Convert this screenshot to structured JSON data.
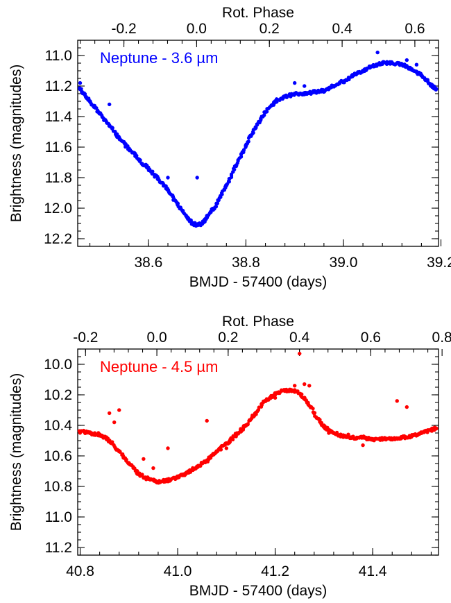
{
  "chart_data": [
    {
      "type": "scatter",
      "annotation": "Neptune - 3.6 µm",
      "color": "#0000ff",
      "xlabel": "BMJD - 57400 (days)",
      "ylabel": "Brightness (magnitudes)",
      "top_axis_label": "Rot. Phase",
      "xlim": [
        38.455,
        39.195
      ],
      "ylim": [
        12.25,
        10.9
      ],
      "y_inverted": true,
      "xticks": [
        38.6,
        38.8,
        39.0,
        39.2
      ],
      "xtick_labels": [
        "38.6",
        "38.8",
        "39.0",
        "39.2"
      ],
      "yticks": [
        11.0,
        11.2,
        11.4,
        11.6,
        11.8,
        12.0,
        12.2
      ],
      "ytick_labels": [
        "11.0",
        "11.2",
        "11.4",
        "11.6",
        "11.8",
        "12.0",
        "12.2"
      ],
      "phase_ticks": [
        -0.2,
        0.0,
        0.2,
        0.4,
        0.6
      ],
      "phase_tick_labels": [
        "-0.2",
        "0.0",
        "0.2",
        "0.4",
        "0.6"
      ],
      "phase_xlim": [
        -0.327,
        0.665
      ],
      "grid": false,
      "series": [
        {
          "x": [
            38.46,
            38.48,
            38.5,
            38.52,
            38.54,
            38.56,
            38.58,
            38.6,
            38.62,
            38.64,
            38.66,
            38.68,
            38.69,
            38.7,
            38.71,
            38.72,
            38.74,
            38.76,
            38.78,
            38.8,
            38.82,
            38.84,
            38.86,
            38.88,
            38.9,
            38.92,
            38.94,
            38.96,
            38.98,
            39.0,
            39.02,
            39.04,
            39.06,
            39.08,
            39.1,
            39.12,
            39.14,
            39.16,
            39.18,
            39.19
          ],
          "y": [
            11.22,
            11.3,
            11.38,
            11.46,
            11.54,
            11.61,
            11.68,
            11.74,
            11.81,
            11.88,
            11.97,
            12.06,
            12.1,
            12.11,
            12.1,
            12.06,
            11.97,
            11.85,
            11.72,
            11.59,
            11.47,
            11.37,
            11.3,
            11.27,
            11.25,
            11.25,
            11.24,
            11.23,
            11.2,
            11.17,
            11.13,
            11.1,
            11.07,
            11.05,
            11.05,
            11.06,
            11.09,
            11.13,
            11.19,
            11.22
          ]
        }
      ],
      "outliers": {
        "x": [
          38.46,
          38.52,
          38.59,
          38.64,
          38.7,
          38.9,
          38.92,
          39.07,
          39.13,
          39.15
        ],
        "y": [
          11.18,
          11.32,
          11.72,
          11.8,
          11.8,
          11.18,
          11.2,
          10.98,
          11.03,
          11.06
        ]
      }
    },
    {
      "type": "scatter",
      "annotation": "Neptune - 4.5 µm",
      "color": "#ff0000",
      "xlabel": "BMJD - 57400 (days)",
      "ylabel": "Brightness (magnitudes)",
      "top_axis_label": "Rot. Phase",
      "xlim": [
        40.795,
        41.535
      ],
      "ylim": [
        11.25,
        9.9
      ],
      "y_inverted": true,
      "xticks": [
        40.8,
        41.0,
        41.2,
        41.4
      ],
      "xtick_labels": [
        "40.8",
        "41.0",
        "41.2",
        "41.4"
      ],
      "yticks": [
        10.0,
        10.2,
        10.4,
        10.6,
        10.8,
        11.0,
        11.2
      ],
      "ytick_labels": [
        "10.0",
        "10.2",
        "10.4",
        "10.6",
        "10.8",
        "11.0",
        "11.2"
      ],
      "phase_ticks": [
        -0.2,
        0.0,
        0.2,
        0.4,
        0.6,
        0.8
      ],
      "phase_tick_labels": [
        "-0.2",
        "0.0",
        "0.2",
        "0.4",
        "0.6",
        "0.8"
      ],
      "phase_xlim": [
        -0.222,
        0.79
      ],
      "grid": false,
      "series": [
        {
          "x": [
            40.8,
            40.82,
            40.84,
            40.86,
            40.88,
            40.9,
            40.92,
            40.94,
            40.96,
            40.98,
            41.0,
            41.02,
            41.04,
            41.06,
            41.08,
            41.1,
            41.12,
            41.14,
            41.16,
            41.18,
            41.2,
            41.22,
            41.24,
            41.26,
            41.28,
            41.3,
            41.32,
            41.34,
            41.36,
            41.38,
            41.4,
            41.42,
            41.44,
            41.46,
            41.48,
            41.5,
            41.52,
            41.53
          ],
          "y": [
            10.44,
            10.45,
            10.46,
            10.5,
            10.57,
            10.65,
            10.72,
            10.75,
            10.77,
            10.76,
            10.74,
            10.71,
            10.67,
            10.63,
            10.57,
            10.52,
            10.46,
            10.4,
            10.32,
            10.24,
            10.19,
            10.17,
            10.17,
            10.22,
            10.32,
            10.41,
            10.45,
            10.47,
            10.48,
            10.48,
            10.49,
            10.49,
            10.49,
            10.48,
            10.47,
            10.45,
            10.43,
            10.42
          ]
        }
      ],
      "outliers": {
        "x": [
          40.86,
          40.87,
          40.88,
          40.93,
          40.95,
          40.98,
          41.06,
          41.1,
          41.2,
          41.24,
          41.25,
          41.26,
          41.27,
          41.3,
          41.31,
          41.35,
          41.38,
          41.45,
          41.47
        ],
        "y": [
          10.32,
          10.38,
          10.3,
          10.62,
          10.68,
          10.55,
          10.37,
          10.55,
          10.22,
          10.14,
          9.93,
          10.13,
          10.14,
          10.4,
          10.45,
          10.46,
          10.53,
          10.24,
          10.28
        ]
      }
    }
  ]
}
